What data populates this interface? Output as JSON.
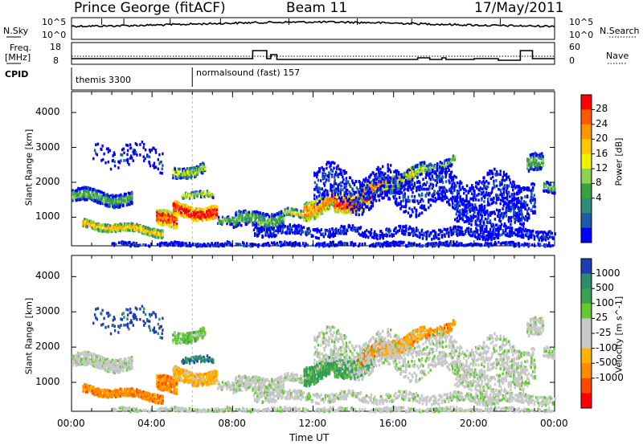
{
  "header": {
    "station": "Prince George (fitACF)",
    "beam": "Beam 11",
    "date": "17/May/2011"
  },
  "noise_panel": {
    "left_label": "N.Sky",
    "right_label": "N.Search",
    "left_ticks": [
      "10^5",
      "10^0"
    ],
    "right_ticks": [
      "10^5",
      "10^0"
    ]
  },
  "freq_panel": {
    "left_label_line1": "Freq.",
    "left_label_line2": "[MHz]",
    "right_label": "Nave",
    "left_ticks": [
      "18",
      "8"
    ],
    "right_ticks": [
      "60",
      "0"
    ]
  },
  "cpid_panel": {
    "label": "CPID",
    "segments": [
      {
        "label": "themis 3300",
        "start_hour": 0
      },
      {
        "label": "normalsound (fast) 157",
        "start_hour": 6
      }
    ]
  },
  "chart_data": [
    {
      "type": "heatmap",
      "name": "power",
      "ylabel": "Slant Range [km]",
      "ylim": [
        180,
        4600
      ],
      "yticks": [
        1000,
        2000,
        3000,
        4000
      ],
      "xlim": [
        0,
        24
      ],
      "colorbar": {
        "label": "Power [dB]",
        "ticks": [
          "28",
          "24",
          "20",
          "16",
          "12",
          "8",
          "4"
        ],
        "colors": [
          "#ff0000",
          "#ff5a00",
          "#ff9600",
          "#ffc800",
          "#f0f000",
          "#8cd250",
          "#3ca03c",
          "#2d8c78",
          "#1e5aaa",
          "#0000ff"
        ]
      }
    },
    {
      "type": "heatmap",
      "name": "velocity",
      "ylabel": "Slant Range [km]",
      "ylim": [
        180,
        4600
      ],
      "yticks": [
        1000,
        2000,
        3000,
        4000
      ],
      "xlim": [
        0,
        24
      ],
      "colorbar": {
        "label": "Velocity [m s^-1]",
        "ticks": [
          "1000",
          "500",
          "100",
          "25",
          "-25",
          "-100",
          "-500",
          "-1000"
        ],
        "colors": [
          "#1e3cb4",
          "#2d8c6e",
          "#3ca050",
          "#64c832",
          "#c8c8c8",
          "#c8c8c8",
          "#ffb400",
          "#ff8c00",
          "#ff4600",
          "#ff0000"
        ]
      }
    }
  ],
  "x_axis": {
    "ticks": [
      "00:00",
      "04:00",
      "08:00",
      "12:00",
      "16:00",
      "20:00",
      "00:00"
    ],
    "label": "Time UT"
  }
}
